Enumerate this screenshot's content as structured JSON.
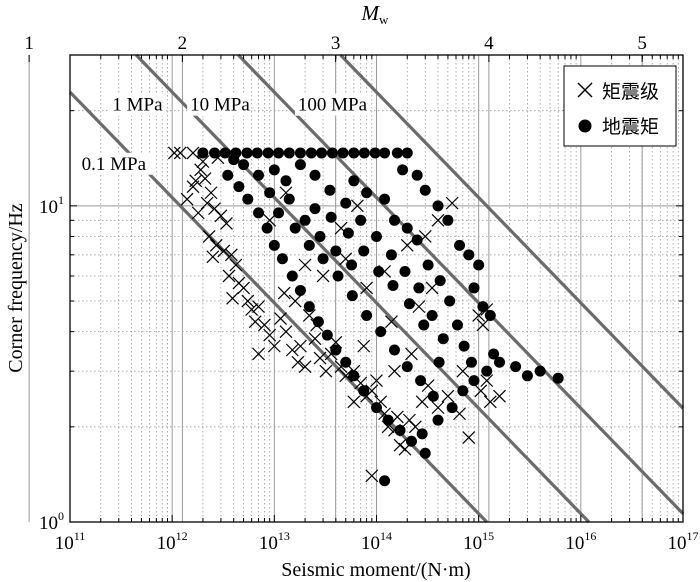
{
  "chart_data": {
    "type": "scatter",
    "xlabel": "Seismic moment/(N·m)",
    "ylabel": "Corner frequency/Hz",
    "top_axis_label": {
      "main": "M",
      "sub": "w"
    },
    "x_scale": "log",
    "y_scale": "log",
    "xlim": [
      100000000000.0,
      1e+17
    ],
    "ylim": [
      1,
      30
    ],
    "x_ticks": [
      {
        "value": 100000000000.0,
        "base": "10",
        "exp": "11"
      },
      {
        "value": 1000000000000.0,
        "base": "10",
        "exp": "12"
      },
      {
        "value": 10000000000000.0,
        "base": "10",
        "exp": "13"
      },
      {
        "value": 100000000000000.0,
        "base": "10",
        "exp": "14"
      },
      {
        "value": 1000000000000000.0,
        "base": "10",
        "exp": "15"
      },
      {
        "value": 1e+16,
        "base": "10",
        "exp": "16"
      },
      {
        "value": 1e+17,
        "base": "10",
        "exp": "17"
      }
    ],
    "y_ticks": [
      {
        "value": 1,
        "base": "10",
        "exp": "0"
      },
      {
        "value": 10,
        "base": "10",
        "exp": "1"
      }
    ],
    "top_ticks": [
      {
        "label": "1",
        "mw": 1
      },
      {
        "label": "2",
        "mw": 2
      },
      {
        "label": "3",
        "mw": 3
      },
      {
        "label": "4",
        "mw": 4
      },
      {
        "label": "5",
        "mw": 5
      }
    ],
    "grid": true,
    "legend_position": "top-right",
    "stress_lines": [
      {
        "label": "0.1 MPa",
        "m0_at_10hz": 1200000000000.0,
        "label_at": [
          130000000000.0,
          13
        ]
      },
      {
        "label": "1 MPa",
        "m0_at_10hz": 12000000000000.0,
        "label_at": [
          260000000000.0,
          20
        ]
      },
      {
        "label": "10 MPa",
        "m0_at_10hz": 120000000000000.0,
        "label_at": [
          1500000000000.0,
          20
        ]
      },
      {
        "label": "100 MPa",
        "m0_at_10hz": 1200000000000000.0,
        "label_at": [
          17000000000000.0,
          20
        ]
      }
    ],
    "series": [
      {
        "name": "矩震级",
        "marker": "x",
        "points": [
          [
            1050000000000.0,
            14.7
          ],
          [
            1200000000000.0,
            14.7
          ],
          [
            1600000000000.0,
            11.5
          ],
          [
            1400000000000.0,
            10.5
          ],
          [
            1900000000000.0,
            13.0
          ],
          [
            1700000000000.0,
            12.0
          ],
          [
            2100000000000.0,
            12.2
          ],
          [
            2400000000000.0,
            11.0
          ],
          [
            1800000000000.0,
            9.5
          ],
          [
            2200000000000.0,
            10.2
          ],
          [
            2600000000000.0,
            9.8
          ],
          [
            3000000000000.0,
            9.3
          ],
          [
            3400000000000.0,
            8.8
          ],
          [
            2300000000000.0,
            8.0
          ],
          [
            2700000000000.0,
            7.5
          ],
          [
            3200000000000.0,
            7.2
          ],
          [
            3800000000000.0,
            7.0
          ],
          [
            4200000000000.0,
            6.5
          ],
          [
            2500000000000.0,
            6.9
          ],
          [
            3600000000000.0,
            6.0
          ],
          [
            4500000000000.0,
            5.7
          ],
          [
            5000000000000.0,
            5.5
          ],
          [
            3900000000000.0,
            5.1
          ],
          [
            5500000000000.0,
            5.0
          ],
          [
            6000000000000.0,
            4.7
          ],
          [
            6500000000000.0,
            4.3
          ],
          [
            7000000000000.0,
            4.8
          ],
          [
            8000000000000.0,
            4.2
          ],
          [
            9000000000000.0,
            3.9
          ],
          [
            10000000000000.0,
            3.6
          ],
          [
            7000000000000.0,
            3.4
          ],
          [
            11500000000000.0,
            4.4
          ],
          [
            13000000000000.0,
            4.0
          ],
          [
            15000000000000.0,
            3.5
          ],
          [
            17000000000000.0,
            3.2
          ],
          [
            20000000000000.0,
            3.1
          ],
          [
            12500000000000.0,
            5.3
          ],
          [
            16000000000000.0,
            5.0
          ],
          [
            22000000000000.0,
            4.5
          ],
          [
            25000000000000.0,
            3.8
          ],
          [
            28000000000000.0,
            3.3
          ],
          [
            32000000000000.0,
            3.0
          ],
          [
            18000000000000.0,
            3.6
          ],
          [
            26000000000000.0,
            4.2
          ],
          [
            36000000000000.0,
            3.4
          ],
          [
            40000000000000.0,
            3.7
          ],
          [
            45000000000000.0,
            3.1
          ],
          [
            50000000000000.0,
            2.9
          ],
          [
            60000000000000.0,
            3.0
          ],
          [
            70000000000000.0,
            2.75
          ],
          [
            80000000000000.0,
            2.5
          ],
          [
            90000000000000.0,
            2.6
          ],
          [
            100000000000000.0,
            2.8
          ],
          [
            110000000000000.0,
            2.4
          ],
          [
            120000000000000.0,
            2.2
          ],
          [
            130000000000000.0,
            2.0
          ],
          [
            150000000000000.0,
            1.95
          ],
          [
            170000000000000.0,
            1.75
          ],
          [
            160000000000000.0,
            2.15
          ],
          [
            190000000000000.0,
            1.7
          ],
          [
            210000000000000.0,
            2.1
          ],
          [
            240000000000000.0,
            2.0
          ],
          [
            90000000000000.0,
            1.4
          ],
          [
            280000000000000.0,
            2.4
          ],
          [
            320000000000000.0,
            2.7
          ],
          [
            400000000000000.0,
            2.3
          ],
          [
            500000000000000.0,
            2.5
          ],
          [
            650000000000000.0,
            2.2
          ],
          [
            800000000000000.0,
            1.85
          ],
          [
            1050000000000000.0,
            2.6
          ],
          [
            1200000000000000.0,
            2.8
          ],
          [
            1300000000000000.0,
            2.4
          ],
          [
            700000000000000.0,
            3.0
          ],
          [
            1200000000000000.0,
            4.7
          ],
          [
            1100000000000000.0,
            4.2
          ],
          [
            1000000000000000.0,
            4.5
          ],
          [
            1600000000000000.0,
            2.5
          ],
          [
            150000000000000.0,
            3.0
          ],
          [
            220000000000000.0,
            3.4
          ],
          [
            20000000000000.0,
            6.5
          ],
          [
            30000000000000.0,
            6.0
          ],
          [
            50000000000000.0,
            6.8
          ],
          [
            80000000000000.0,
            5.5
          ],
          [
            120000000000000.0,
            6.2
          ],
          [
            200000000000000.0,
            7.5
          ],
          [
            300000000000000.0,
            8.0
          ],
          [
            400000000000000.0,
            9.0
          ],
          [
            550000000000000.0,
            10.2
          ],
          [
            45000000000000.0,
            8.5
          ],
          [
            65000000000000.0,
            10.0
          ],
          [
            9000000000000.0,
            9.0
          ],
          [
            13000000000000.0,
            11.0
          ],
          [
            1600000000000.0,
            14.7
          ],
          [
            2000000000000.0,
            13.8
          ],
          [
            2800000000000.0,
            14.2
          ],
          [
            60000000000000.0,
            2.4
          ],
          [
            75000000000000.0,
            3.6
          ],
          [
            140000000000000.0,
            4.3
          ],
          [
            260000000000000.0,
            4.8
          ],
          [
            350000000000000.0,
            5.5
          ]
        ]
      },
      {
        "name": "地震矩",
        "marker": "circle",
        "points": [
          [
            2000000000000.0,
            14.7
          ],
          [
            2600000000000.0,
            14.7
          ],
          [
            3300000000000.0,
            14.7
          ],
          [
            4200000000000.0,
            14.7
          ],
          [
            5400000000000.0,
            14.7
          ],
          [
            6800000000000.0,
            14.7
          ],
          [
            8700000000000.0,
            14.7
          ],
          [
            11000000000000.0,
            14.7
          ],
          [
            14000000000000.0,
            14.7
          ],
          [
            18000000000000.0,
            14.7
          ],
          [
            23000000000000.0,
            14.7
          ],
          [
            29000000000000.0,
            14.7
          ],
          [
            37000000000000.0,
            14.7
          ],
          [
            47000000000000.0,
            14.7
          ],
          [
            60000000000000.0,
            14.7
          ],
          [
            76000000000000.0,
            14.7
          ],
          [
            97000000000000.0,
            14.7
          ],
          [
            120000000000000.0,
            14.7
          ],
          [
            160000000000000.0,
            14.7
          ],
          [
            200000000000000.0,
            14.7
          ],
          [
            3500000000000.0,
            12.5
          ],
          [
            4500000000000.0,
            11.5
          ],
          [
            5500000000000.0,
            10.5
          ],
          [
            7000000000000.0,
            9.5
          ],
          [
            8500000000000.0,
            8.5
          ],
          [
            10000000000000.0,
            7.5
          ],
          [
            12000000000000.0,
            6.8
          ],
          [
            15000000000000.0,
            6.0
          ],
          [
            18000000000000.0,
            5.4
          ],
          [
            22000000000000.0,
            4.8
          ],
          [
            27000000000000.0,
            4.3
          ],
          [
            33000000000000.0,
            3.9
          ],
          [
            40000000000000.0,
            3.5
          ],
          [
            50000000000000.0,
            3.2
          ],
          [
            60000000000000.0,
            2.9
          ],
          [
            300000000000000.0,
            1.65
          ],
          [
            75000000000000.0,
            2.6
          ],
          [
            100000000000000.0,
            2.3
          ],
          [
            130000000000000.0,
            2.1
          ],
          [
            170000000000000.0,
            1.95
          ],
          [
            220000000000000.0,
            1.8
          ],
          [
            280000000000000.0,
            1.9
          ],
          [
            120000000000000.0,
            1.35
          ],
          [
            400000000000000.0,
            2.1
          ],
          [
            550000000000000.0,
            2.3
          ],
          [
            700000000000000.0,
            2.6
          ],
          [
            900000000000000.0,
            2.8
          ],
          [
            1200000000000000.0,
            3.0
          ],
          [
            1600000000000000.0,
            3.2
          ],
          [
            2300000000000000.0,
            3.1
          ],
          [
            3000000000000000.0,
            2.9
          ],
          [
            4000000000000000.0,
            3.0
          ],
          [
            6000000000000000.0,
            2.85
          ],
          [
            1400000000000000.0,
            3.4
          ],
          [
            1100000000000000.0,
            4.8
          ],
          [
            1300000000000000.0,
            4.5
          ],
          [
            900000000000000.0,
            5.5
          ],
          [
            1000000000000000.0,
            6.5
          ],
          [
            800000000000000.0,
            7.0
          ],
          [
            650000000000000.0,
            7.5
          ],
          [
            500000000000000.0,
            9.0
          ],
          [
            400000000000000.0,
            10.0
          ],
          [
            300000000000000.0,
            11.2
          ],
          [
            250000000000000.0,
            12.5
          ],
          [
            180000000000000.0,
            13.0
          ],
          [
            60000000000000.0,
            12.0
          ],
          [
            80000000000000.0,
            11.0
          ],
          [
            120000000000000.0,
            10.5
          ],
          [
            150000000000000.0,
            9.0
          ],
          [
            200000000000000.0,
            8.5
          ],
          [
            250000000000000.0,
            7.8
          ],
          [
            320000000000000.0,
            6.5
          ],
          [
            420000000000000.0,
            5.8
          ],
          [
            520000000000000.0,
            5.0
          ],
          [
            620000000000000.0,
            4.2
          ],
          [
            720000000000000.0,
            3.6
          ],
          [
            850000000000000.0,
            3.2
          ],
          [
            450000000000000.0,
            3.8
          ],
          [
            350000000000000.0,
            4.5
          ],
          [
            260000000000000.0,
            5.5
          ],
          [
            190000000000000.0,
            6.2
          ],
          [
            140000000000000.0,
            7.0
          ],
          [
            100000000000000.0,
            8.0
          ],
          [
            70000000000000.0,
            9.0
          ],
          [
            50000000000000.0,
            10.2
          ],
          [
            35000000000000.0,
            11.2
          ],
          [
            25000000000000.0,
            12.5
          ],
          [
            18000000000000.0,
            13.5
          ],
          [
            13000000000000.0,
            12.0
          ],
          [
            9000000000000.0,
            11.0
          ],
          [
            7000000000000.0,
            12.5
          ],
          [
            5000000000000.0,
            13.5
          ],
          [
            4000000000000.0,
            14.0
          ],
          [
            11000000000000.0,
            9.5
          ],
          [
            16000000000000.0,
            8.5
          ],
          [
            22000000000000.0,
            7.5
          ],
          [
            30000000000000.0,
            6.8
          ],
          [
            42000000000000.0,
            6.0
          ],
          [
            58000000000000.0,
            5.2
          ],
          [
            80000000000000.0,
            4.5
          ],
          [
            110000000000000.0,
            4.0
          ],
          [
            150000000000000.0,
            3.5
          ],
          [
            200000000000000.0,
            3.1
          ],
          [
            270000000000000.0,
            2.8
          ],
          [
            360000000000000.0,
            2.5
          ],
          [
            25000000000000.0,
            9.8
          ],
          [
            36000000000000.0,
            9.2
          ],
          [
            53000000000000.0,
            8.2
          ],
          [
            75000000000000.0,
            7.2
          ],
          [
            105000000000000.0,
            6.2
          ],
          [
            145000000000000.0,
            5.6
          ],
          [
            210000000000000.0,
            4.9
          ],
          [
            290000000000000.0,
            4.2
          ],
          [
            410000000000000.0,
            3.2
          ],
          [
            10000000000000.0,
            13.0
          ],
          [
            14000000000000.0,
            10.5
          ],
          [
            20000000000000.0,
            9.0
          ],
          [
            28000000000000.0,
            8.0
          ],
          [
            40000000000000.0,
            7.2
          ],
          [
            57000000000000.0,
            6.5
          ]
        ]
      }
    ]
  }
}
